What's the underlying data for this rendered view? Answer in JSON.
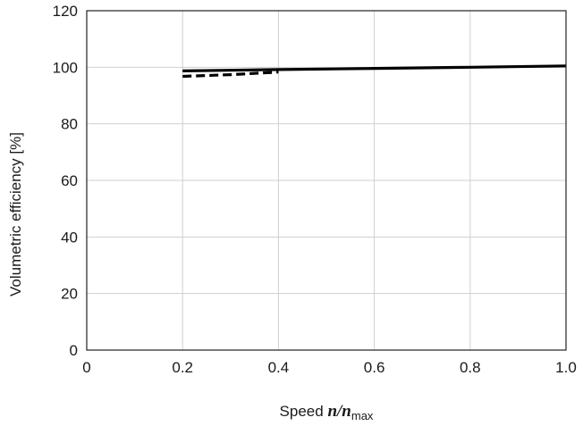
{
  "chart_data": {
    "type": "line",
    "title": "",
    "ylabel": "Volumetric efficiency [%]",
    "xlabel": {
      "prefix": "Speed ",
      "var1": "n",
      "slash": "/",
      "var2": "n",
      "subscript": "max"
    },
    "xlim": [
      0,
      1.0
    ],
    "ylim": [
      0,
      120
    ],
    "x_ticks": [
      0,
      0.2,
      0.4,
      0.6,
      0.8,
      1.0
    ],
    "x_tick_labels": [
      "0",
      "0.2",
      "0.4",
      "0.6",
      "0.8",
      "1.0"
    ],
    "y_ticks": [
      0,
      20,
      40,
      60,
      80,
      100,
      120
    ],
    "y_tick_labels": [
      "0",
      "20",
      "40",
      "60",
      "80",
      "100",
      "120"
    ],
    "grid": true,
    "legend": "none",
    "series": [
      {
        "style": "solid",
        "color": "#000000",
        "x": [
          0.2,
          0.4,
          0.6,
          0.8,
          1.0
        ],
        "y": [
          98.7,
          99.2,
          99.6,
          100.0,
          100.5
        ]
      },
      {
        "style": "dashed",
        "color": "#000000",
        "x": [
          0.2,
          0.3,
          0.4
        ],
        "y": [
          96.8,
          97.4,
          98.3
        ]
      }
    ]
  }
}
